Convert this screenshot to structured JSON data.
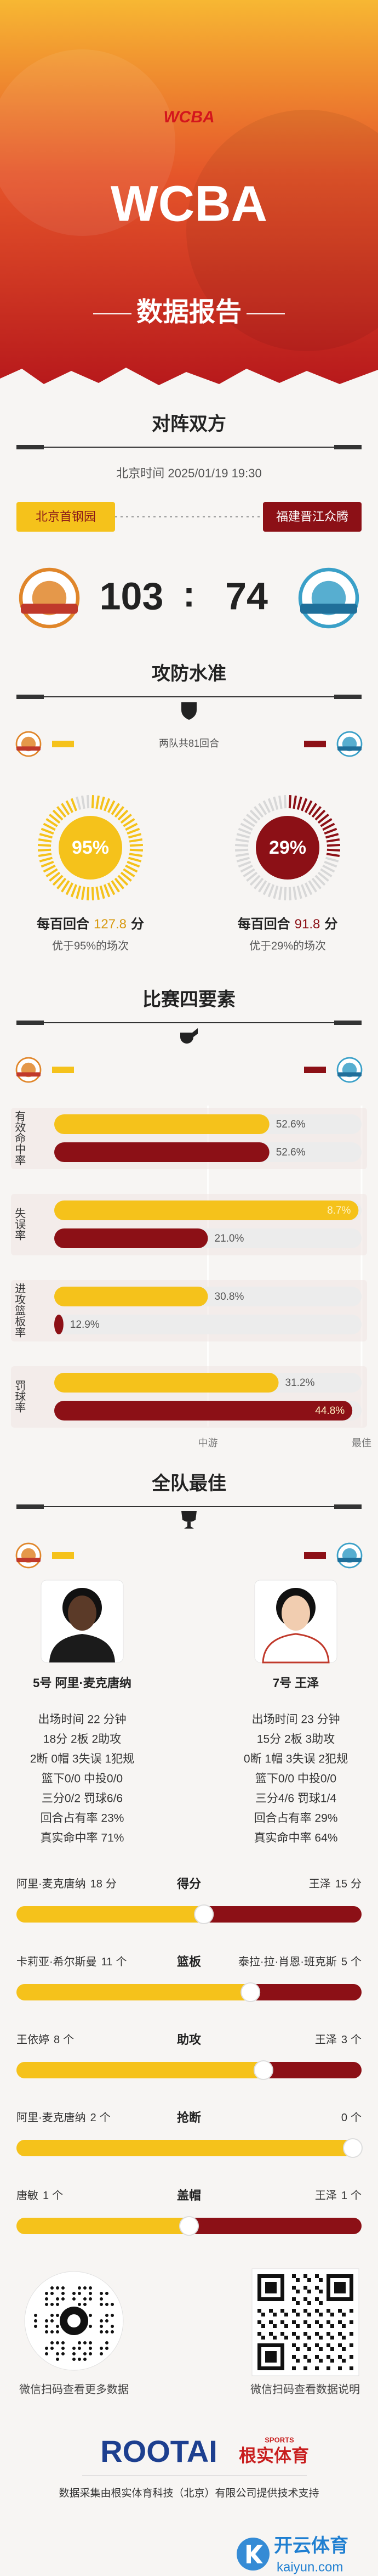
{
  "header": {
    "logo": "WCBA",
    "title": "WCBA",
    "subtitle": "数据报告"
  },
  "matchup": {
    "title": "对阵双方",
    "time": "北京时间 2025/01/19 19:30",
    "home": "北京首钢园",
    "away": "福建晋江众腾",
    "score": {
      "home": 103,
      "separator": ":",
      "away": 74
    }
  },
  "efficiency": {
    "title": "攻防水准",
    "possessions": "两队共81回合",
    "home": {
      "rating": {
        "value": 95,
        "label": "95%"
      },
      "prefix": "每百回合",
      "points": 127.8,
      "unit": "分",
      "note": "优于95%的场次"
    },
    "away": {
      "rating": {
        "value": 29,
        "label": "29%"
      },
      "prefix": "每百回合",
      "points": 91.8,
      "unit": "分",
      "note": "优于29%的场次"
    }
  },
  "four_factors": {
    "title": "比赛四要素",
    "scale": [
      {
        "value": 50,
        "label": "中游"
      },
      {
        "value": 100,
        "label": "最佳"
      }
    ],
    "factors": [
      {
        "label": "有效命中率",
        "home": {
          "label": "52.6%",
          "level": 70
        },
        "away": {
          "label": "52.6%",
          "level": 70
        }
      },
      {
        "label": "失误率",
        "home": {
          "label": "8.7%",
          "level": 99
        },
        "away": {
          "label": "21.0%",
          "level": 50
        }
      },
      {
        "label": "进攻篮板率",
        "home": {
          "label": "30.8%",
          "level": 50
        },
        "away": {
          "label": "12.9%",
          "level": 3
        }
      },
      {
        "label": "罚球率",
        "home": {
          "label": "31.2%",
          "level": 73
        },
        "away": {
          "label": "44.8%",
          "level": 97
        }
      }
    ]
  },
  "best": {
    "title": "全队最佳",
    "home": {
      "name": "5号 阿里·麦克唐纳",
      "stats": [
        "出场时间 22 分钟",
        "18分 2板 2助攻",
        "2断 0帽 3失误 1犯规",
        "篮下0/0 中投0/0",
        "三分0/2 罚球6/6",
        "回合占有率 23%",
        "真实命中率 71%"
      ]
    },
    "away": {
      "name": "7号 王泽",
      "stats": [
        "出场时间 23 分钟",
        "15分 2板 3助攻",
        "0断 1帽 3失误 2犯规",
        "篮下0/0 中投0/0",
        "三分4/6 罚球1/4",
        "回合占有率 29%",
        "真实命中率 64%"
      ]
    }
  },
  "leaders": [
    {
      "category": "得分",
      "home": {
        "player": "阿里·麦克唐纳",
        "value": 18,
        "unit": "分"
      },
      "away": {
        "player": "王泽",
        "value": 15,
        "unit": "分"
      }
    },
    {
      "category": "篮板",
      "home": {
        "player": "卡莉亚·希尔斯曼",
        "value": 11,
        "unit": "个"
      },
      "away": {
        "player": "泰拉·拉·肖恩·班克斯",
        "value": 5,
        "unit": "个"
      }
    },
    {
      "category": "助攻",
      "home": {
        "player": "王依婷",
        "value": 8,
        "unit": "个"
      },
      "away": {
        "player": "王泽",
        "value": 3,
        "unit": "个"
      }
    },
    {
      "category": "抢断",
      "home": {
        "player": "阿里·麦克唐纳",
        "value": 2,
        "unit": "个"
      },
      "away": {
        "value": 0,
        "unit": "个"
      }
    },
    {
      "category": "盖帽",
      "home": {
        "player": "唐敏",
        "value": 1,
        "unit": "个"
      },
      "away": {
        "player": "王泽",
        "value": 1,
        "unit": "个"
      }
    }
  ],
  "footer": {
    "qr_left_caption": "微信扫码查看更多数据",
    "qr_right_caption": "微信扫码查看数据说明",
    "brand": "ROOTAI",
    "brand_sports": "SPORTS",
    "brand_cn": "根实体育",
    "credit": "数据采集由根实体育科技（北京）有限公司提供技术支持"
  },
  "watermark": {
    "name": "开云体育",
    "url": "kaiyun.com"
  }
}
